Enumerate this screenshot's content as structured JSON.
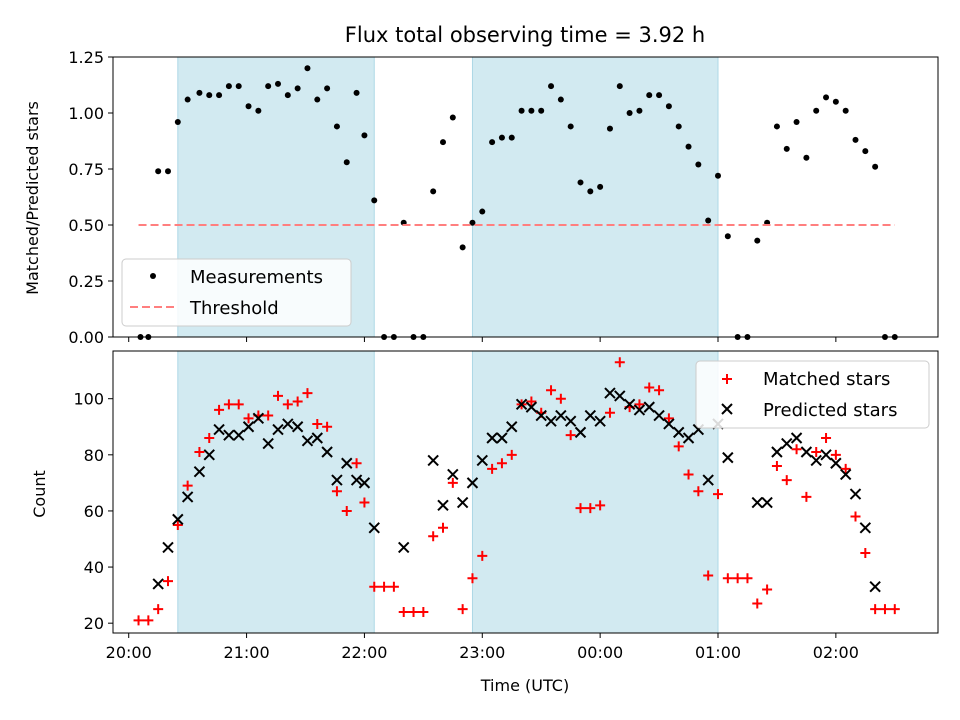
{
  "title": "Flux total observing time = 3.92 h",
  "colors": {
    "shade": "#add8e6",
    "measurement": "#000000",
    "threshold": "#ff7f7f",
    "matched": "#ff0000",
    "predicted": "#000000"
  },
  "chart_data": [
    {
      "type": "scatter",
      "ylabel": "Matched/Predicted stars",
      "ylim": [
        0,
        1.25
      ],
      "yticks": [
        "0.00",
        "0.25",
        "0.50",
        "0.75",
        "1.00",
        "1.25"
      ],
      "xlim": [
        "19:52",
        "02:52"
      ],
      "xticks": [
        "20:00",
        "21:00",
        "22:00",
        "23:00",
        "00:00",
        "01:00",
        "02:00"
      ],
      "shaded_intervals": [
        [
          "20:25",
          "22:05"
        ],
        [
          "22:55",
          "01:00"
        ]
      ],
      "legend": {
        "position": "lower-left",
        "entries": [
          "Measurements",
          "Threshold"
        ]
      },
      "series": [
        {
          "name": "Measurements",
          "marker": "dot",
          "points": [
            [
              "20:06",
              0.0
            ],
            [
              "20:10",
              0.0
            ],
            [
              "20:15",
              0.74
            ],
            [
              "20:20",
              0.74
            ],
            [
              "20:25",
              0.96
            ],
            [
              "20:30",
              1.06
            ],
            [
              "20:36",
              1.09
            ],
            [
              "20:41",
              1.08
            ],
            [
              "20:46",
              1.08
            ],
            [
              "20:51",
              1.12
            ],
            [
              "20:56",
              1.12
            ],
            [
              "21:01",
              1.03
            ],
            [
              "21:06",
              1.01
            ],
            [
              "21:11",
              1.12
            ],
            [
              "21:16",
              1.13
            ],
            [
              "21:21",
              1.08
            ],
            [
              "21:26",
              1.11
            ],
            [
              "21:31",
              1.2
            ],
            [
              "21:36",
              1.06
            ],
            [
              "21:41",
              1.11
            ],
            [
              "21:46",
              0.94
            ],
            [
              "21:51",
              0.78
            ],
            [
              "21:56",
              1.09
            ],
            [
              "22:00",
              0.9
            ],
            [
              "22:05",
              0.61
            ],
            [
              "22:10",
              0.0
            ],
            [
              "22:15",
              0.0
            ],
            [
              "22:20",
              0.51
            ],
            [
              "22:25",
              0.0
            ],
            [
              "22:30",
              0.0
            ],
            [
              "22:35",
              0.65
            ],
            [
              "22:40",
              0.87
            ],
            [
              "22:45",
              0.98
            ],
            [
              "22:50",
              0.4
            ],
            [
              "22:55",
              0.51
            ],
            [
              "23:00",
              0.56
            ],
            [
              "23:05",
              0.87
            ],
            [
              "23:10",
              0.89
            ],
            [
              "23:15",
              0.89
            ],
            [
              "23:20",
              1.01
            ],
            [
              "23:25",
              1.01
            ],
            [
              "23:30",
              1.01
            ],
            [
              "23:35",
              1.12
            ],
            [
              "23:40",
              1.06
            ],
            [
              "23:45",
              0.94
            ],
            [
              "23:50",
              0.69
            ],
            [
              "23:55",
              0.65
            ],
            [
              "00:00",
              0.67
            ],
            [
              "00:05",
              0.93
            ],
            [
              "00:10",
              1.12
            ],
            [
              "00:15",
              1.0
            ],
            [
              "00:20",
              1.01
            ],
            [
              "00:25",
              1.08
            ],
            [
              "00:30",
              1.08
            ],
            [
              "00:35",
              1.03
            ],
            [
              "00:40",
              0.94
            ],
            [
              "00:45",
              0.85
            ],
            [
              "00:50",
              0.77
            ],
            [
              "00:55",
              0.52
            ],
            [
              "01:00",
              0.72
            ],
            [
              "01:05",
              0.45
            ],
            [
              "01:10",
              0.0
            ],
            [
              "01:15",
              0.0
            ],
            [
              "01:20",
              0.43
            ],
            [
              "01:25",
              0.51
            ],
            [
              "01:30",
              0.94
            ],
            [
              "01:35",
              0.84
            ],
            [
              "01:40",
              0.96
            ],
            [
              "01:45",
              0.8
            ],
            [
              "01:50",
              1.01
            ],
            [
              "01:55",
              1.07
            ],
            [
              "02:00",
              1.05
            ],
            [
              "02:05",
              1.01
            ],
            [
              "02:10",
              0.88
            ],
            [
              "02:15",
              0.83
            ],
            [
              "02:20",
              0.76
            ],
            [
              "02:25",
              0.0
            ],
            [
              "02:30",
              0.0
            ]
          ]
        },
        {
          "name": "Threshold",
          "style": "dashed-line",
          "points": [
            [
              "20:05",
              0.5
            ],
            [
              "02:30",
              0.5
            ]
          ]
        }
      ]
    },
    {
      "type": "scatter",
      "xlabel": "Time (UTC)",
      "ylabel": "Count",
      "ylim": [
        16.5,
        117
      ],
      "yticks": [
        "20",
        "40",
        "60",
        "80",
        "100"
      ],
      "xlim": [
        "19:52",
        "02:52"
      ],
      "xticks": [
        "20:00",
        "21:00",
        "22:00",
        "23:00",
        "00:00",
        "01:00",
        "02:00"
      ],
      "shaded_intervals": [
        [
          "20:25",
          "22:05"
        ],
        [
          "22:55",
          "01:00"
        ]
      ],
      "legend": {
        "position": "upper-right",
        "entries": [
          "Matched stars",
          "Predicted stars"
        ]
      },
      "series": [
        {
          "name": "Matched stars",
          "marker": "plus",
          "points": [
            [
              "20:05",
              21
            ],
            [
              "20:10",
              21
            ],
            [
              "20:15",
              25
            ],
            [
              "20:20",
              35
            ],
            [
              "20:25",
              55
            ],
            [
              "20:30",
              69
            ],
            [
              "20:36",
              81
            ],
            [
              "20:41",
              86
            ],
            [
              "20:46",
              96
            ],
            [
              "20:51",
              98
            ],
            [
              "20:56",
              98
            ],
            [
              "21:01",
              93
            ],
            [
              "21:06",
              94
            ],
            [
              "21:11",
              94
            ],
            [
              "21:16",
              101
            ],
            [
              "21:21",
              98
            ],
            [
              "21:26",
              99
            ],
            [
              "21:31",
              102
            ],
            [
              "21:36",
              91
            ],
            [
              "21:41",
              90
            ],
            [
              "21:46",
              67
            ],
            [
              "21:51",
              60
            ],
            [
              "21:56",
              77
            ],
            [
              "22:00",
              63
            ],
            [
              "22:05",
              33
            ],
            [
              "22:10",
              33
            ],
            [
              "22:15",
              33
            ],
            [
              "22:20",
              24
            ],
            [
              "22:25",
              24
            ],
            [
              "22:30",
              24
            ],
            [
              "22:35",
              51
            ],
            [
              "22:40",
              54
            ],
            [
              "22:45",
              70
            ],
            [
              "22:50",
              25
            ],
            [
              "22:55",
              36
            ],
            [
              "23:00",
              44
            ],
            [
              "23:05",
              75
            ],
            [
              "23:10",
              77
            ],
            [
              "23:15",
              80
            ],
            [
              "23:20",
              98
            ],
            [
              "23:25",
              99
            ],
            [
              "23:30",
              95
            ],
            [
              "23:35",
              103
            ],
            [
              "23:40",
              100
            ],
            [
              "23:45",
              87
            ],
            [
              "23:50",
              61
            ],
            [
              "23:55",
              61
            ],
            [
              "00:00",
              62
            ],
            [
              "00:05",
              95
            ],
            [
              "00:10",
              113
            ],
            [
              "00:15",
              97
            ],
            [
              "00:20",
              98
            ],
            [
              "00:25",
              104
            ],
            [
              "00:30",
              103
            ],
            [
              "00:35",
              93
            ],
            [
              "00:40",
              83
            ],
            [
              "00:45",
              73
            ],
            [
              "00:50",
              67
            ],
            [
              "00:55",
              37
            ],
            [
              "01:00",
              66
            ],
            [
              "01:05",
              36
            ],
            [
              "01:10",
              36
            ],
            [
              "01:15",
              36
            ],
            [
              "01:20",
              27
            ],
            [
              "01:25",
              32
            ],
            [
              "01:30",
              76
            ],
            [
              "01:35",
              71
            ],
            [
              "01:40",
              82
            ],
            [
              "01:45",
              65
            ],
            [
              "01:50",
              81
            ],
            [
              "01:55",
              86
            ],
            [
              "02:00",
              80
            ],
            [
              "02:05",
              75
            ],
            [
              "02:10",
              58
            ],
            [
              "02:15",
              45
            ],
            [
              "02:20",
              25
            ],
            [
              "02:25",
              25
            ],
            [
              "02:30",
              25
            ]
          ]
        },
        {
          "name": "Predicted stars",
          "marker": "x",
          "points": [
            [
              "20:15",
              34
            ],
            [
              "20:20",
              47
            ],
            [
              "20:25",
              57
            ],
            [
              "20:30",
              65
            ],
            [
              "20:36",
              74
            ],
            [
              "20:41",
              80
            ],
            [
              "20:46",
              89
            ],
            [
              "20:51",
              87
            ],
            [
              "20:56",
              87
            ],
            [
              "21:01",
              90
            ],
            [
              "21:06",
              93
            ],
            [
              "21:11",
              84
            ],
            [
              "21:16",
              89
            ],
            [
              "21:21",
              91
            ],
            [
              "21:26",
              90
            ],
            [
              "21:31",
              85
            ],
            [
              "21:36",
              86
            ],
            [
              "21:41",
              81
            ],
            [
              "21:46",
              71
            ],
            [
              "21:51",
              77
            ],
            [
              "21:56",
              71
            ],
            [
              "22:00",
              70
            ],
            [
              "22:05",
              54
            ],
            [
              "22:20",
              47
            ],
            [
              "22:35",
              78
            ],
            [
              "22:40",
              62
            ],
            [
              "22:45",
              73
            ],
            [
              "22:50",
              63
            ],
            [
              "22:55",
              70
            ],
            [
              "23:00",
              78
            ],
            [
              "23:05",
              86
            ],
            [
              "23:10",
              86
            ],
            [
              "23:15",
              90
            ],
            [
              "23:20",
              98
            ],
            [
              "23:25",
              97
            ],
            [
              "23:30",
              94
            ],
            [
              "23:35",
              92
            ],
            [
              "23:40",
              94
            ],
            [
              "23:45",
              92
            ],
            [
              "23:50",
              88
            ],
            [
              "23:55",
              94
            ],
            [
              "00:00",
              92
            ],
            [
              "00:05",
              102
            ],
            [
              "00:10",
              101
            ],
            [
              "00:15",
              98
            ],
            [
              "00:20",
              96
            ],
            [
              "00:25",
              97
            ],
            [
              "00:30",
              94
            ],
            [
              "00:35",
              91
            ],
            [
              "00:40",
              88
            ],
            [
              "00:45",
              86
            ],
            [
              "00:50",
              89
            ],
            [
              "00:55",
              71
            ],
            [
              "01:00",
              91
            ],
            [
              "01:05",
              79
            ],
            [
              "01:20",
              63
            ],
            [
              "01:25",
              63
            ],
            [
              "01:30",
              81
            ],
            [
              "01:35",
              84
            ],
            [
              "01:40",
              86
            ],
            [
              "01:45",
              81
            ],
            [
              "01:50",
              78
            ],
            [
              "01:55",
              80
            ],
            [
              "02:00",
              77
            ],
            [
              "02:05",
              73
            ],
            [
              "02:10",
              66
            ],
            [
              "02:15",
              54
            ],
            [
              "02:20",
              33
            ]
          ]
        }
      ]
    }
  ]
}
